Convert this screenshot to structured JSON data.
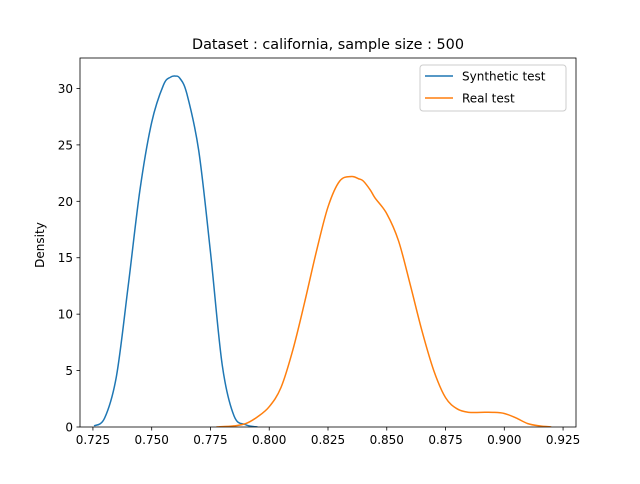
{
  "chart_data": {
    "type": "line",
    "title": "Dataset : california, sample size : 500",
    "xlabel": "",
    "ylabel": "Density",
    "xlim": [
      0.7195,
      0.9305
    ],
    "ylim": [
      0,
      32.7
    ],
    "xticks": [
      0.725,
      0.75,
      0.775,
      0.8,
      0.825,
      0.85,
      0.875,
      0.9,
      0.925
    ],
    "xtick_labels": [
      "0.725",
      "0.750",
      "0.775",
      "0.800",
      "0.825",
      "0.850",
      "0.875",
      "0.900",
      "0.925"
    ],
    "yticks": [
      0,
      5,
      10,
      15,
      20,
      25,
      30
    ],
    "ytick_labels": [
      "0",
      "5",
      "10",
      "15",
      "20",
      "25",
      "30"
    ],
    "grid": false,
    "legend_position": "top-right",
    "series": [
      {
        "name": "Synthetic test",
        "color": "#1f77b4",
        "x": [
          0.7255,
          0.73,
          0.735,
          0.74,
          0.745,
          0.75,
          0.755,
          0.758,
          0.76,
          0.762,
          0.765,
          0.77,
          0.775,
          0.78,
          0.785,
          0.79,
          0.795
        ],
        "y": [
          0.1,
          0.8,
          4.5,
          12.5,
          21.0,
          27.0,
          30.3,
          31.0,
          31.1,
          30.9,
          29.5,
          24.5,
          15.5,
          5.5,
          1.0,
          0.2,
          0.0
        ]
      },
      {
        "name": "Real test",
        "color": "#ff7f0e",
        "x": [
          0.7775,
          0.785,
          0.79,
          0.795,
          0.8,
          0.805,
          0.81,
          0.815,
          0.82,
          0.825,
          0.83,
          0.835,
          0.838,
          0.84,
          0.843,
          0.845,
          0.85,
          0.855,
          0.86,
          0.865,
          0.87,
          0.875,
          0.88,
          0.885,
          0.89,
          0.895,
          0.9,
          0.905,
          0.91,
          0.915,
          0.92
        ],
        "y": [
          0.0,
          0.1,
          0.3,
          0.9,
          1.8,
          3.5,
          6.8,
          11.0,
          15.5,
          19.5,
          21.8,
          22.2,
          22.0,
          21.8,
          21.0,
          20.3,
          18.9,
          16.5,
          12.6,
          8.5,
          5.0,
          2.6,
          1.6,
          1.3,
          1.3,
          1.3,
          1.2,
          0.8,
          0.3,
          0.1,
          0.0
        ]
      }
    ]
  }
}
